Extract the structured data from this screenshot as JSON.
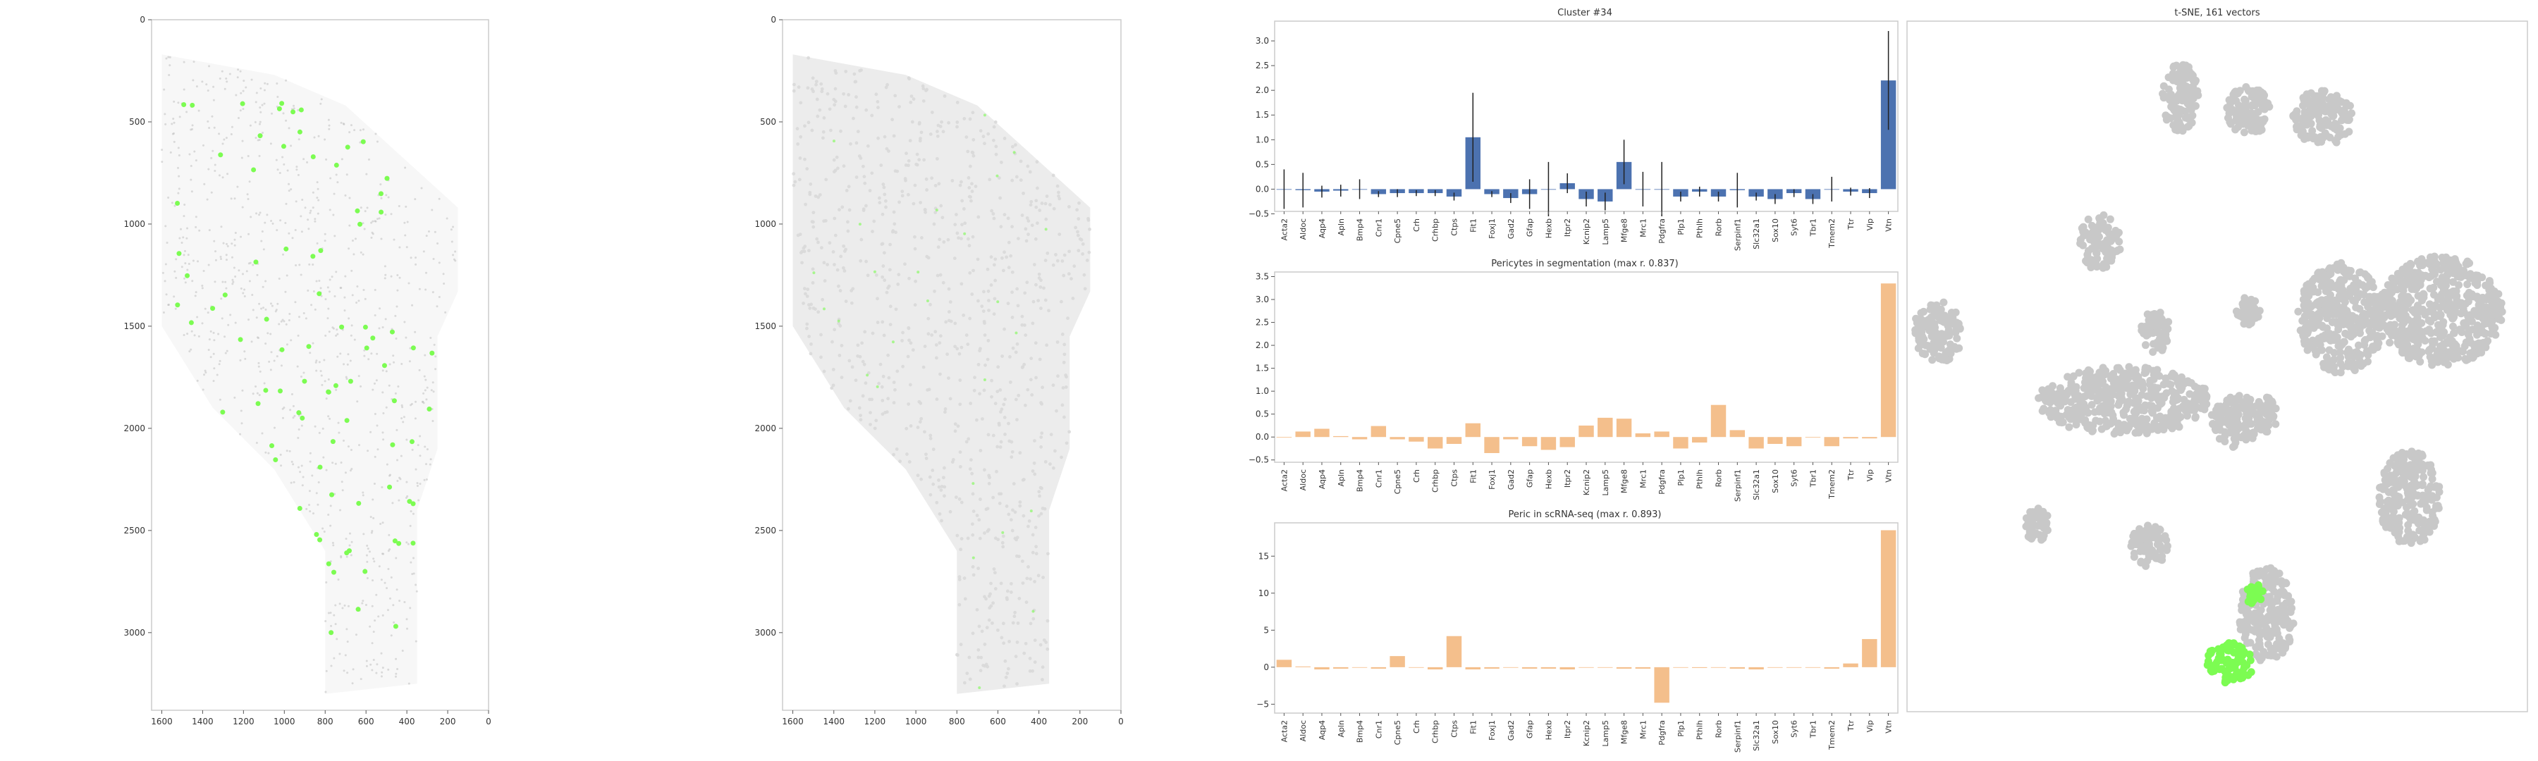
{
  "colors": {
    "highlight": "#7cfc52",
    "bar_blue": "#4c72b0",
    "bar_orange": "#f4bf8c",
    "grey_point": "#c8c8c8",
    "tissue_grey": "#d9d9d9"
  },
  "chart_data": [
    {
      "type": "scatter",
      "name": "tissue-raw",
      "title": "",
      "xlim": [
        1650,
        0
      ],
      "ylim": [
        3380,
        0
      ],
      "xticks": [
        "1600",
        "1400",
        "1200",
        "1000",
        "800",
        "600",
        "400",
        "200",
        "0"
      ],
      "xtick_values": [
        1600,
        1400,
        1200,
        1000,
        800,
        600,
        400,
        200,
        0
      ],
      "yticks": [
        "0",
        "500",
        "1000",
        "1500",
        "2000",
        "2500",
        "3000"
      ],
      "ytick_values": [
        0,
        500,
        1000,
        1500,
        2000,
        2500,
        3000
      ],
      "highlight_points_desc": "green cells of cluster #34"
    },
    {
      "type": "scatter",
      "name": "tissue-segmented",
      "title": "",
      "xlim": [
        1650,
        0
      ],
      "ylim": [
        3380,
        0
      ],
      "xticks": [
        "1600",
        "1400",
        "1200",
        "1000",
        "800",
        "600",
        "400",
        "200",
        "0"
      ],
      "xtick_values": [
        1600,
        1400,
        1200,
        1000,
        800,
        600,
        400,
        200,
        0
      ],
      "yticks": [
        "0",
        "500",
        "1000",
        "1500",
        "2000",
        "2500",
        "3000"
      ],
      "ytick_values": [
        0,
        500,
        1000,
        1500,
        2000,
        2500,
        3000
      ]
    },
    {
      "type": "bar",
      "name": "cluster-bar",
      "title": "Cluster #34",
      "categories": [
        "Acta2",
        "Aldoc",
        "Aqp4",
        "Apln",
        "Bmp4",
        "Cnr1",
        "Cpne5",
        "Crh",
        "Crhbp",
        "Ctps",
        "Fit1",
        "Foxj1",
        "Gad2",
        "Gfap",
        "Hexb",
        "Itpr2",
        "Kcnip2",
        "Lamp5",
        "Mfge8",
        "Mrc1",
        "Pdgfra",
        "Plp1",
        "Pthlh",
        "Rorb",
        "Serpinf1",
        "Slc32a1",
        "Sox10",
        "Syt6",
        "Tbr1",
        "Tmem2",
        "Ttr",
        "Vip",
        "Vtn"
      ],
      "values": [
        0.0,
        -0.02,
        -0.05,
        -0.03,
        0.0,
        -0.1,
        -0.08,
        -0.08,
        -0.08,
        -0.15,
        1.05,
        -0.1,
        -0.18,
        -0.1,
        0.0,
        0.12,
        -0.2,
        -0.25,
        0.55,
        0.0,
        0.0,
        -0.15,
        -0.05,
        -0.15,
        -0.02,
        -0.15,
        -0.2,
        -0.08,
        -0.2,
        0.0,
        -0.05,
        -0.08,
        2.2
      ],
      "errors": [
        0.4,
        0.35,
        0.12,
        0.12,
        0.2,
        0.06,
        0.08,
        0.06,
        0.06,
        0.08,
        0.9,
        0.06,
        0.1,
        0.3,
        0.55,
        0.2,
        0.15,
        0.18,
        0.45,
        0.35,
        0.55,
        0.1,
        0.1,
        0.1,
        0.35,
        0.08,
        0.1,
        0.08,
        0.1,
        0.25,
        0.08,
        0.1,
        1.0
      ],
      "ylim": [
        -0.45,
        3.4
      ],
      "yticks": [
        -0.5,
        0.0,
        0.5,
        1.0,
        1.5,
        2.0,
        2.5,
        3.0
      ],
      "ytick_labels": [
        "−0.5",
        "0.0",
        "0.5",
        "1.0",
        "1.5",
        "2.0",
        "2.5",
        "3.0"
      ]
    },
    {
      "type": "bar",
      "name": "pericytes-bar",
      "title": "Pericytes in segmentation (max r. 0.837)",
      "categories": [
        "Acta2",
        "Aldoc",
        "Aqp4",
        "Apln",
        "Bmp4",
        "Cnr1",
        "Cpne5",
        "Crh",
        "Crhbp",
        "Ctps",
        "Fit1",
        "Foxj1",
        "Gad2",
        "Gfap",
        "Hexb",
        "Itpr2",
        "Kcnip2",
        "Lamp5",
        "Mfge8",
        "Mrc1",
        "Pdgfra",
        "Plp1",
        "Pthlh",
        "Rorb",
        "Serpinf1",
        "Slc32a1",
        "Sox10",
        "Syt6",
        "Tbr1",
        "Tmem2",
        "Ttr",
        "Vip",
        "Vtn"
      ],
      "values": [
        0.0,
        0.12,
        0.18,
        0.02,
        -0.05,
        0.24,
        -0.05,
        -0.1,
        -0.25,
        -0.15,
        0.3,
        -0.35,
        -0.05,
        -0.2,
        -0.28,
        -0.22,
        0.25,
        0.42,
        0.4,
        0.08,
        0.12,
        -0.25,
        -0.12,
        0.7,
        0.15,
        -0.25,
        -0.15,
        -0.2,
        0.0,
        -0.2,
        -0.03,
        -0.03,
        3.35
      ],
      "ylim": [
        -0.55,
        3.6
      ],
      "yticks": [
        -0.5,
        0.0,
        0.5,
        1.0,
        1.5,
        2.0,
        2.5,
        3.0,
        3.5
      ],
      "ytick_labels": [
        "−0.5",
        "0.0",
        "0.5",
        "1.0",
        "1.5",
        "2.0",
        "2.5",
        "3.0",
        "3.5"
      ]
    },
    {
      "type": "bar",
      "name": "peric-bar",
      "title": "Peric in scRNA-seq (max r. 0.893)",
      "categories": [
        "Acta2",
        "Aldoc",
        "Aqp4",
        "Apln",
        "Bmp4",
        "Cnr1",
        "Cpne5",
        "Crh",
        "Crhbp",
        "Ctps",
        "Fit1",
        "Foxj1",
        "Gad2",
        "Gfap",
        "Hexb",
        "Itpr2",
        "Kcnip2",
        "Lamp5",
        "Mfge8",
        "Mrc1",
        "Pdgfra",
        "Plp1",
        "Pthlh",
        "Rorb",
        "Serpinf1",
        "Slc32a1",
        "Sox10",
        "Syt6",
        "Tbr1",
        "Tmem2",
        "Ttr",
        "Vip",
        "Vtn"
      ],
      "values": [
        1.0,
        0.1,
        -0.3,
        -0.2,
        0.0,
        -0.2,
        1.5,
        0.0,
        -0.3,
        4.2,
        -0.3,
        -0.2,
        0.0,
        -0.2,
        -0.2,
        -0.3,
        0.0,
        0.0,
        -0.2,
        -0.2,
        -4.8,
        0.0,
        -0.1,
        0.0,
        -0.2,
        -0.3,
        0.0,
        0.0,
        0.0,
        -0.2,
        0.5,
        3.8,
        18.5
      ],
      "ylim": [
        -6.2,
        19.5
      ],
      "yticks": [
        -5,
        0,
        5,
        10,
        15
      ],
      "ytick_labels": [
        "−5",
        "0",
        "5",
        "10",
        "15"
      ]
    },
    {
      "type": "scatter",
      "name": "tsne",
      "title": "t-SNE, 161 vectors",
      "xlim": [
        0,
        100
      ],
      "ylim": [
        0,
        100
      ],
      "clusters_grey": [
        {
          "x": 44,
          "y": 89,
          "rx": 3,
          "ry": 5
        },
        {
          "x": 55,
          "y": 87,
          "rx": 3.5,
          "ry": 3.5
        },
        {
          "x": 67,
          "y": 86,
          "rx": 5,
          "ry": 4
        },
        {
          "x": 31,
          "y": 68,
          "rx": 3.5,
          "ry": 4
        },
        {
          "x": 5,
          "y": 55,
          "rx": 4,
          "ry": 4.5
        },
        {
          "x": 40,
          "y": 55,
          "rx": 2.5,
          "ry": 3
        },
        {
          "x": 55,
          "y": 58,
          "rx": 2,
          "ry": 2
        },
        {
          "x": 86,
          "y": 58,
          "rx": 10,
          "ry": 8
        },
        {
          "x": 70,
          "y": 57,
          "rx": 7,
          "ry": 8
        },
        {
          "x": 35,
          "y": 45,
          "rx": 14,
          "ry": 5
        },
        {
          "x": 53,
          "y": 42,
          "rx": 4,
          "ry": 4
        },
        {
          "x": 58,
          "y": 43,
          "rx": 2,
          "ry": 2.5
        },
        {
          "x": 81,
          "y": 31,
          "rx": 5,
          "ry": 7
        },
        {
          "x": 21,
          "y": 27,
          "rx": 2,
          "ry": 2.5
        },
        {
          "x": 39,
          "y": 24,
          "rx": 3,
          "ry": 3
        },
        {
          "x": 58,
          "y": 14,
          "rx": 4.5,
          "ry": 7
        }
      ],
      "clusters_green": [
        {
          "x": 52,
          "y": 7,
          "rx": 4,
          "ry": 3
        },
        {
          "x": 56,
          "y": 17,
          "rx": 1.5,
          "ry": 1.5
        }
      ]
    }
  ]
}
